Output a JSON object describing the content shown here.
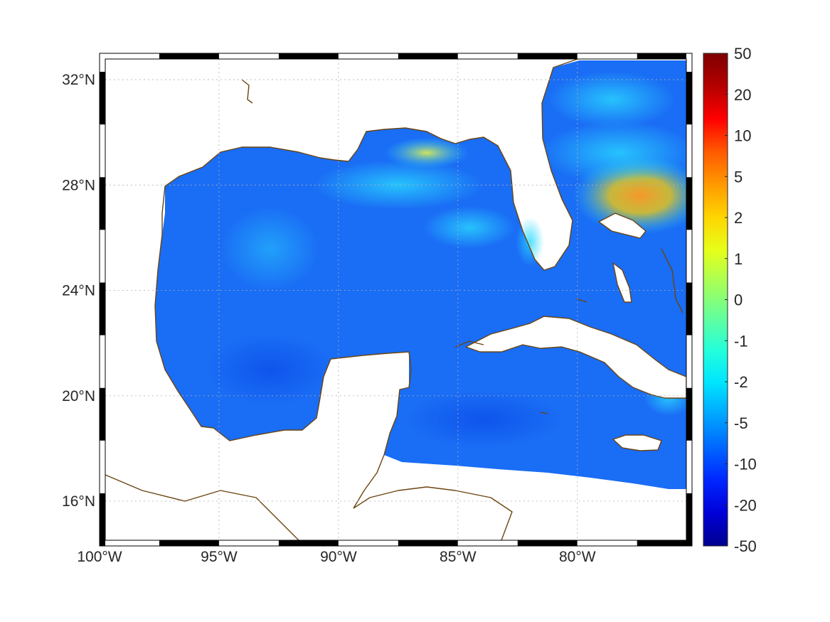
{
  "map": {
    "lon_range": [
      -100,
      -75.2
    ],
    "lat_range": [
      14.3,
      33.0
    ],
    "grid": true,
    "lon_ticks": [
      {
        "value": -100,
        "label": "100°W"
      },
      {
        "value": -95,
        "label": "95°W"
      },
      {
        "value": -90,
        "label": "90°W"
      },
      {
        "value": -85,
        "label": "85°W"
      },
      {
        "value": -80,
        "label": "80°W"
      }
    ],
    "lat_ticks": [
      {
        "value": 32,
        "label": "32°N"
      },
      {
        "value": 28,
        "label": "28°N"
      },
      {
        "value": 24,
        "label": "24°N"
      },
      {
        "value": 20,
        "label": "20°N"
      },
      {
        "value": 16,
        "label": "16°N"
      }
    ],
    "coast_color": "#6b4410",
    "field_base_color": "#1a6df5"
  },
  "colorbar": {
    "ticks": [
      "50",
      "20",
      "10",
      "5",
      "2",
      "1",
      "0",
      "-1",
      "-2",
      "-5",
      "-10",
      "-20",
      "-50"
    ],
    "colors": [
      "#7f0000",
      "#b50000",
      "#ff0000",
      "#ff5a00",
      "#ff9a00",
      "#ffd500",
      "#e6ff1a",
      "#a6ff59",
      "#66ff99",
      "#26ffd9",
      "#00e6ff",
      "#00a6ff",
      "#0066ff",
      "#0026ff",
      "#0000d9",
      "#00008f"
    ]
  }
}
